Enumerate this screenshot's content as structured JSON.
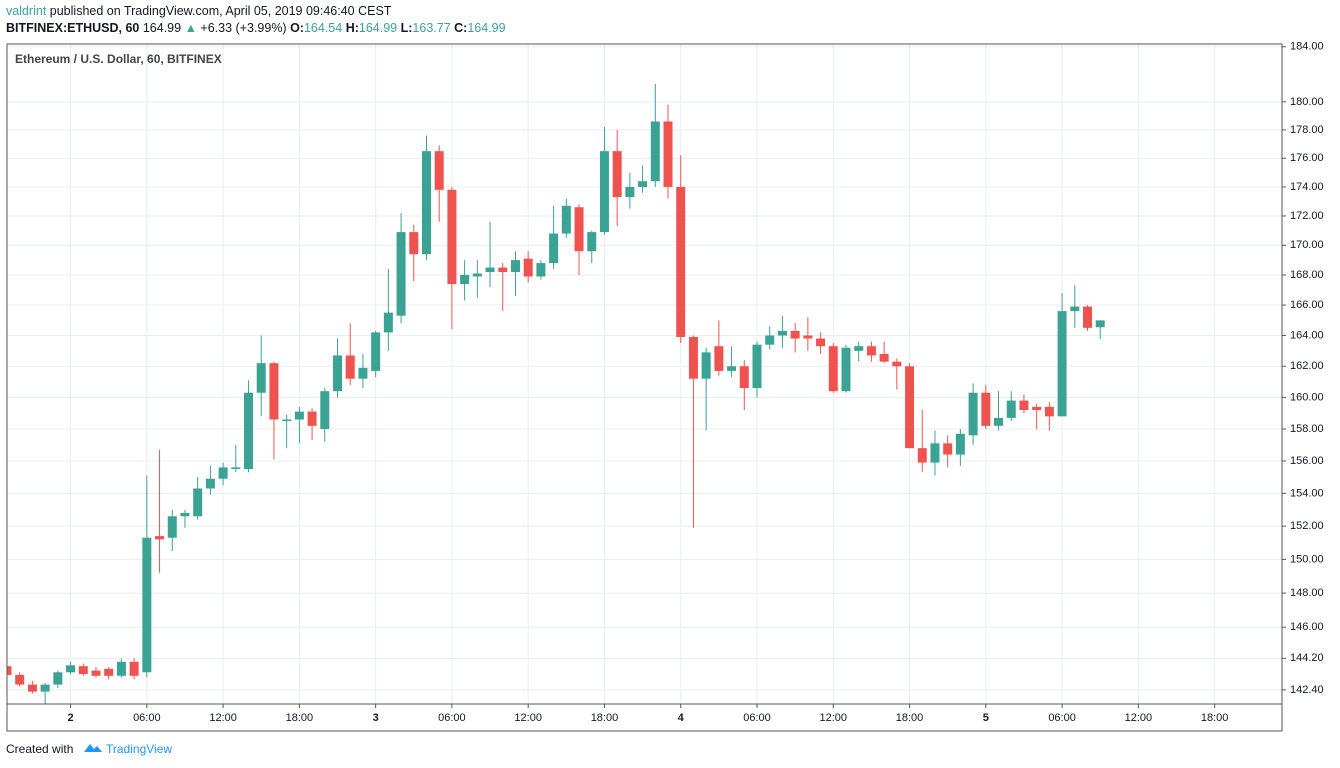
{
  "header": {
    "publisher": "valdrint",
    "published": "published on TradingView.com, April 05, 2019 09:46:40 CEST",
    "symbol": "BITFINEX:ETHUSD, 60",
    "last": 164.99,
    "arrow": "▲",
    "change": "+6.33 (+3.99%)",
    "open_label": "O:",
    "open": 164.54,
    "high_label": "H:",
    "high": 164.99,
    "low_label": "L:",
    "low": 163.77,
    "close_label": "C:",
    "close": 164.99
  },
  "chart_data": {
    "type": "candlestick",
    "legend": "Ethereum / U.S. Dollar, 60, BITFINEX",
    "log_scale": true,
    "grid": true,
    "up_color": "#3aa394",
    "down_color": "#ef5350",
    "x": [
      "2019-04-01T19:00",
      "2019-04-01T20:00",
      "2019-04-01T21:00",
      "2019-04-01T22:00",
      "2019-04-01T23:00",
      "2019-04-02T00:00",
      "2019-04-02T01:00",
      "2019-04-02T02:00",
      "2019-04-02T03:00",
      "2019-04-02T04:00",
      "2019-04-02T05:00",
      "2019-04-02T06:00",
      "2019-04-02T07:00",
      "2019-04-02T08:00",
      "2019-04-02T09:00",
      "2019-04-02T10:00",
      "2019-04-02T11:00",
      "2019-04-02T12:00",
      "2019-04-02T13:00",
      "2019-04-02T14:00",
      "2019-04-02T15:00",
      "2019-04-02T16:00",
      "2019-04-02T17:00",
      "2019-04-02T18:00",
      "2019-04-02T19:00",
      "2019-04-02T20:00",
      "2019-04-02T21:00",
      "2019-04-02T22:00",
      "2019-04-02T23:00",
      "2019-04-03T00:00",
      "2019-04-03T01:00",
      "2019-04-03T02:00",
      "2019-04-03T03:00",
      "2019-04-03T04:00",
      "2019-04-03T05:00",
      "2019-04-03T06:00",
      "2019-04-03T07:00",
      "2019-04-03T08:00",
      "2019-04-03T09:00",
      "2019-04-03T10:00",
      "2019-04-03T11:00",
      "2019-04-03T12:00",
      "2019-04-03T13:00",
      "2019-04-03T14:00",
      "2019-04-03T15:00",
      "2019-04-03T16:00",
      "2019-04-03T17:00",
      "2019-04-03T18:00",
      "2019-04-03T19:00",
      "2019-04-03T20:00",
      "2019-04-03T21:00",
      "2019-04-03T22:00",
      "2019-04-03T23:00",
      "2019-04-04T00:00",
      "2019-04-04T01:00",
      "2019-04-04T02:00",
      "2019-04-04T03:00",
      "2019-04-04T04:00",
      "2019-04-04T05:00",
      "2019-04-04T06:00",
      "2019-04-04T07:00",
      "2019-04-04T08:00",
      "2019-04-04T09:00",
      "2019-04-04T10:00",
      "2019-04-04T11:00",
      "2019-04-04T12:00",
      "2019-04-04T13:00",
      "2019-04-04T14:00",
      "2019-04-04T15:00",
      "2019-04-04T16:00",
      "2019-04-04T17:00",
      "2019-04-04T18:00",
      "2019-04-04T19:00",
      "2019-04-04T20:00",
      "2019-04-04T21:00",
      "2019-04-04T22:00",
      "2019-04-04T23:00",
      "2019-04-05T00:00",
      "2019-04-05T01:00",
      "2019-04-05T02:00",
      "2019-04-05T03:00",
      "2019-04-05T04:00",
      "2019-04-05T05:00",
      "2019-04-05T06:00",
      "2019-04-05T07:00",
      "2019-04-05T08:00",
      "2019-04-05T09:00"
    ],
    "open": [
      143.75,
      143.25,
      142.7,
      142.3,
      142.7,
      143.4,
      143.75,
      143.5,
      143.6,
      143.2,
      144.0,
      143.4,
      151.4,
      151.3,
      152.6,
      152.6,
      154.3,
      154.9,
      155.5,
      155.5,
      160.3,
      162.2,
      158.5,
      158.6,
      159.1,
      158.0,
      160.4,
      162.7,
      161.2,
      161.7,
      164.2,
      165.3,
      170.9,
      169.4,
      176.5,
      173.8,
      167.4,
      167.9,
      168.2,
      168.5,
      168.2,
      169.1,
      167.9,
      168.8,
      170.8,
      172.6,
      169.6,
      170.9,
      176.5,
      173.3,
      174.0,
      174.4,
      178.6,
      174.0,
      163.9,
      161.2,
      163.3,
      161.7,
      162.0,
      160.6,
      163.4,
      164.0,
      164.3,
      164.0,
      163.8,
      163.3,
      160.4,
      163.0,
      163.3,
      162.8,
      162.3,
      162.0,
      156.8,
      155.9,
      157.1,
      156.4,
      157.6,
      160.3,
      158.2,
      158.7,
      159.8,
      159.4,
      159.4,
      158.8,
      165.6,
      165.9,
      164.54
    ],
    "high": [
      143.9,
      143.4,
      142.9,
      142.8,
      143.5,
      144.0,
      143.9,
      143.7,
      143.7,
      144.2,
      144.2,
      155.1,
      156.7,
      153.0,
      153.0,
      155.0,
      155.7,
      155.9,
      157.0,
      161.1,
      164.0,
      162.3,
      158.9,
      159.4,
      159.3,
      160.6,
      163.8,
      164.8,
      162.8,
      164.3,
      168.4,
      172.2,
      171.4,
      177.6,
      176.9,
      174.0,
      169.0,
      169.0,
      171.6,
      168.8,
      169.6,
      169.6,
      169.0,
      172.7,
      173.2,
      172.8,
      171.0,
      178.2,
      178.0,
      175.0,
      175.5,
      181.3,
      179.8,
      176.2,
      164.0,
      163.2,
      165.0,
      163.3,
      162.4,
      163.6,
      164.6,
      165.3,
      164.8,
      165.2,
      164.2,
      163.5,
      163.4,
      163.6,
      163.6,
      163.6,
      162.5,
      162.2,
      159.2,
      157.9,
      157.6,
      158.0,
      160.9,
      160.8,
      160.4,
      160.4,
      160.2,
      159.6,
      159.7,
      166.8,
      167.3,
      166.0,
      164.99
    ],
    "low": [
      143.1,
      142.6,
      142.2,
      141.6,
      142.5,
      143.3,
      143.2,
      143.1,
      143.0,
      143.1,
      143.0,
      143.1,
      149.2,
      150.5,
      151.9,
      152.4,
      153.9,
      154.5,
      155.3,
      155.3,
      158.8,
      156.1,
      156.8,
      157.1,
      157.3,
      157.2,
      160.0,
      160.8,
      160.6,
      161.3,
      163.0,
      164.8,
      167.6,
      169.0,
      171.6,
      164.4,
      166.3,
      166.5,
      167.2,
      165.6,
      166.6,
      167.5,
      167.7,
      168.4,
      170.5,
      168.0,
      168.8,
      170.7,
      171.3,
      172.5,
      173.6,
      174.0,
      173.2,
      163.5,
      151.9,
      157.9,
      161.4,
      161.3,
      159.2,
      160.0,
      163.1,
      163.2,
      162.9,
      163.0,
      162.8,
      160.3,
      160.3,
      162.3,
      162.3,
      162.2,
      160.5,
      156.8,
      155.3,
      155.1,
      155.6,
      155.7,
      157.0,
      158.0,
      157.9,
      158.5,
      159.0,
      158.0,
      157.9,
      158.8,
      164.5,
      164.3,
      163.77
    ],
    "close": [
      143.25,
      142.7,
      142.3,
      142.7,
      143.4,
      143.8,
      143.3,
      143.2,
      143.2,
      144.0,
      143.2,
      151.3,
      151.2,
      152.6,
      152.8,
      154.3,
      154.9,
      155.6,
      155.6,
      160.3,
      162.2,
      158.6,
      158.6,
      159.1,
      158.2,
      160.4,
      162.7,
      161.2,
      161.9,
      164.2,
      165.5,
      170.9,
      169.4,
      176.5,
      173.8,
      167.4,
      168.0,
      168.1,
      168.5,
      168.2,
      169.0,
      167.9,
      168.8,
      170.8,
      172.7,
      169.6,
      170.9,
      176.5,
      173.3,
      174.0,
      174.4,
      178.6,
      174.0,
      163.9,
      161.2,
      162.9,
      161.7,
      162.0,
      160.6,
      163.4,
      164.0,
      164.3,
      163.8,
      163.8,
      163.3,
      160.4,
      163.2,
      163.3,
      162.7,
      162.3,
      162.0,
      156.8,
      155.9,
      157.1,
      156.4,
      157.7,
      160.3,
      158.2,
      158.7,
      159.8,
      159.2,
      159.2,
      158.8,
      165.6,
      165.9,
      164.5,
      164.99
    ],
    "xlim": [
      "2019-04-01T19:00",
      "2019-04-05T23:18"
    ],
    "xticks": [
      {
        "value": "2019-04-02T00:00",
        "label": "2"
      },
      {
        "value": "2019-04-02T06:00",
        "label": "06:00"
      },
      {
        "value": "2019-04-02T12:00",
        "label": "12:00"
      },
      {
        "value": "2019-04-02T18:00",
        "label": "18:00"
      },
      {
        "value": "2019-04-03T00:00",
        "label": "3"
      },
      {
        "value": "2019-04-03T06:00",
        "label": "06:00"
      },
      {
        "value": "2019-04-03T12:00",
        "label": "12:00"
      },
      {
        "value": "2019-04-03T18:00",
        "label": "18:00"
      },
      {
        "value": "2019-04-04T00:00",
        "label": "4"
      },
      {
        "value": "2019-04-04T06:00",
        "label": "06:00"
      },
      {
        "value": "2019-04-04T12:00",
        "label": "12:00"
      },
      {
        "value": "2019-04-04T18:00",
        "label": "18:00"
      },
      {
        "value": "2019-04-05T00:00",
        "label": "5"
      },
      {
        "value": "2019-04-05T06:00",
        "label": "06:00"
      },
      {
        "value": "2019-04-05T12:00",
        "label": "12:00"
      },
      {
        "value": "2019-04-05T18:00",
        "label": "18:00"
      }
    ],
    "ylim": [
      141.6,
      184.2
    ],
    "yticks": [
      {
        "value": 142.4,
        "label": "142.40"
      },
      {
        "value": 144.2,
        "label": "144.20"
      },
      {
        "value": 146,
        "label": "146.00"
      },
      {
        "value": 148,
        "label": "148.00"
      },
      {
        "value": 150,
        "label": "150.00"
      },
      {
        "value": 152,
        "label": "152.00"
      },
      {
        "value": 154,
        "label": "154.00"
      },
      {
        "value": 156,
        "label": "156.00"
      },
      {
        "value": 158,
        "label": "158.00"
      },
      {
        "value": 160,
        "label": "160.00"
      },
      {
        "value": 162,
        "label": "162.00"
      },
      {
        "value": 164,
        "label": "164.00"
      },
      {
        "value": 166,
        "label": "166.00"
      },
      {
        "value": 168,
        "label": "168.00"
      },
      {
        "value": 170,
        "label": "170.00"
      },
      {
        "value": 172,
        "label": "172.00"
      },
      {
        "value": 174,
        "label": "174.00"
      },
      {
        "value": 176,
        "label": "176.00"
      },
      {
        "value": 178,
        "label": "178.00"
      },
      {
        "value": 180,
        "label": "180.00"
      },
      {
        "value": 184,
        "label": "184.00"
      }
    ]
  },
  "footer": {
    "created": "Created with",
    "brand": "TradingView"
  }
}
